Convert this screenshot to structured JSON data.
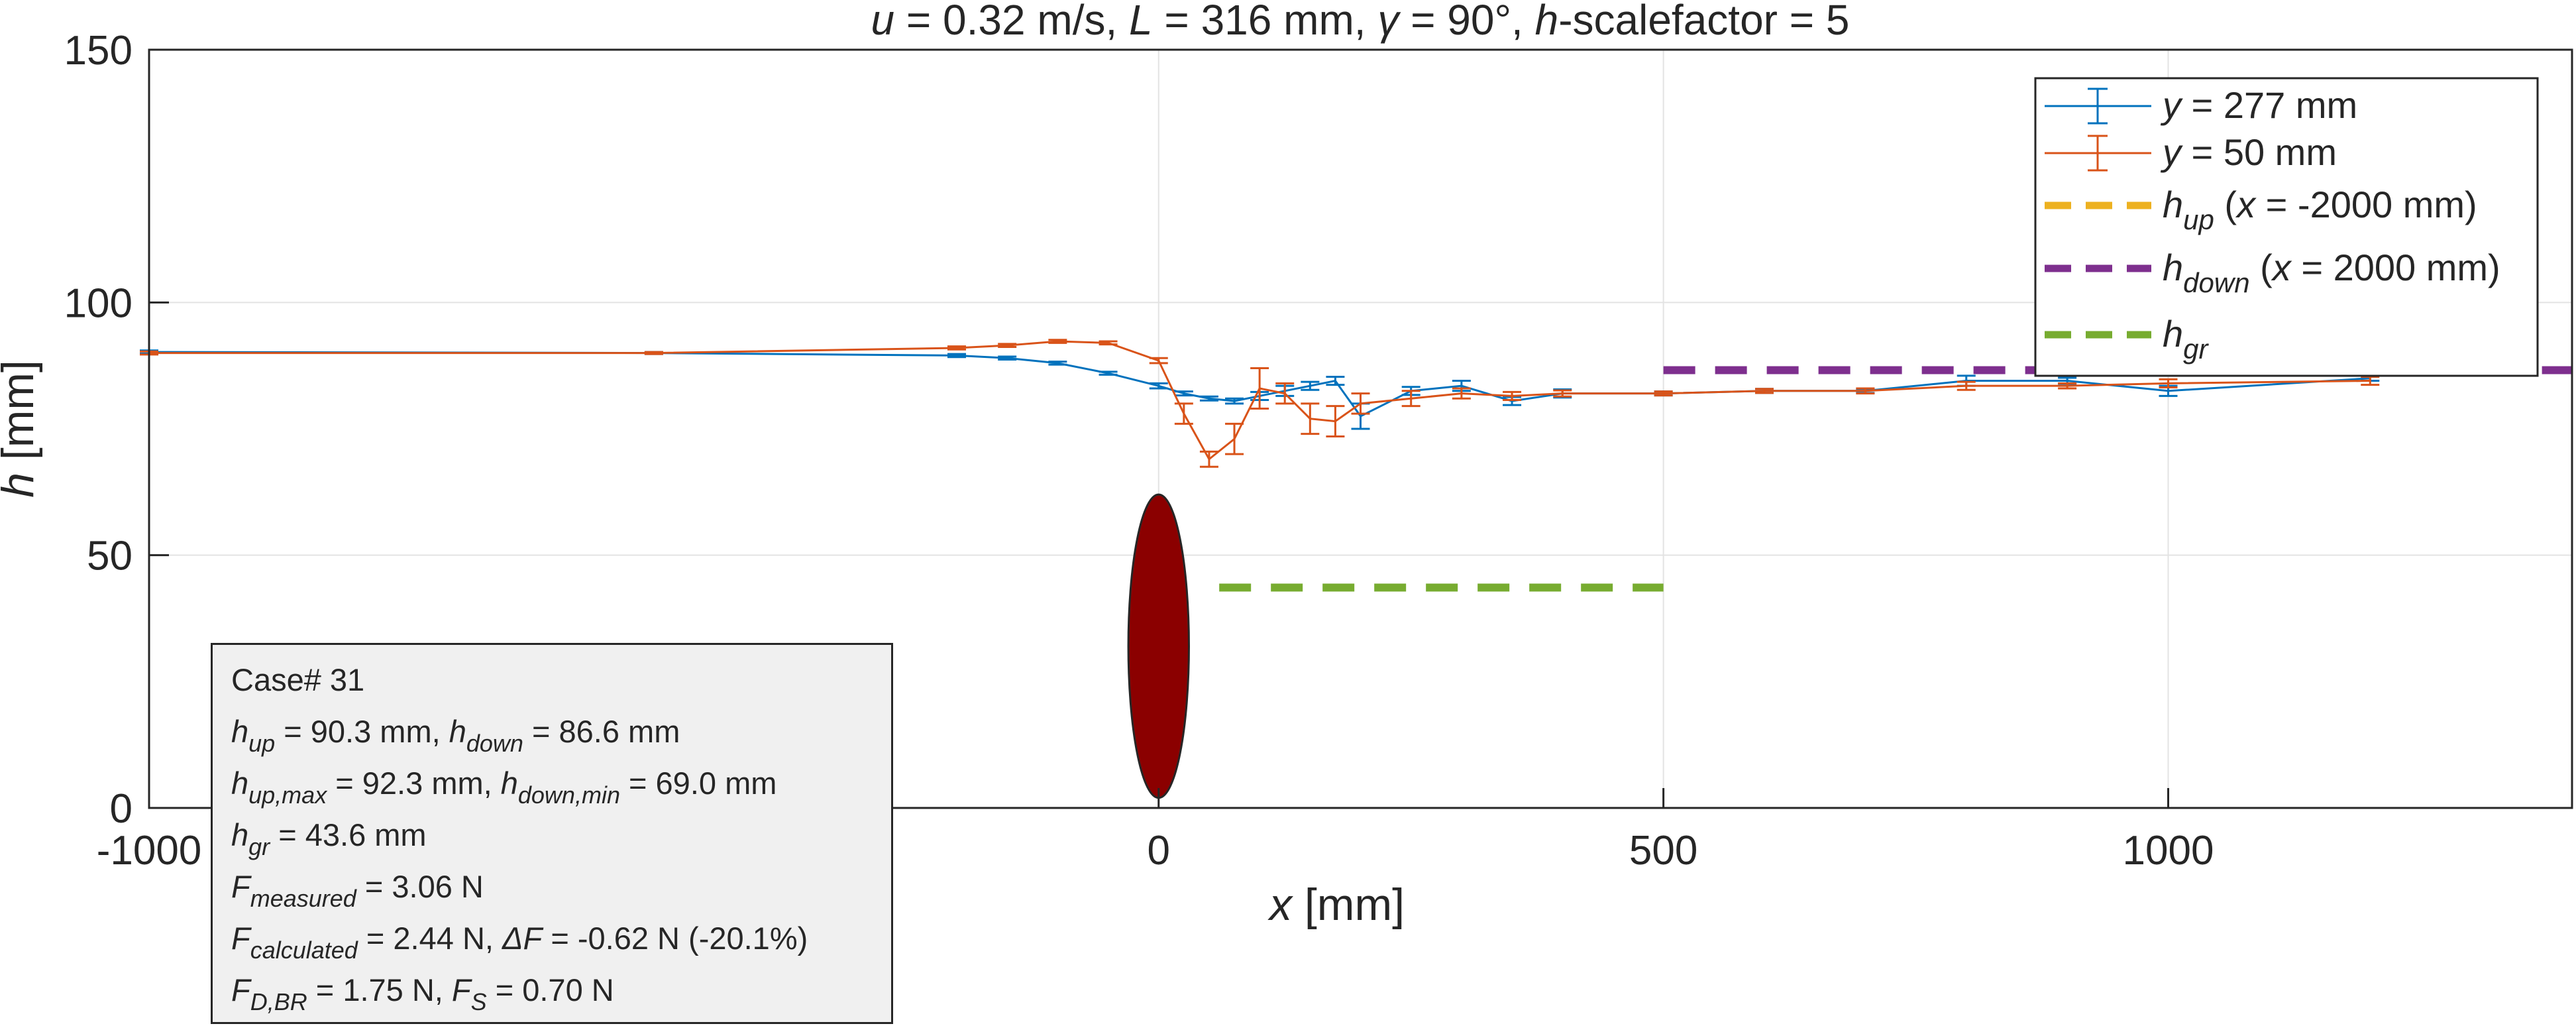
{
  "chart_data": {
    "type": "line",
    "title": {
      "u": "0.32",
      "L": "316",
      "gamma": "90",
      "scalefactor": "5"
    },
    "xlabel": "x [mm]",
    "ylabel": "h [mm]",
    "xlim": [
      -1000,
      1400
    ],
    "ylim": [
      0,
      150
    ],
    "xticks": [
      "-1000",
      "0",
      "500",
      "1000"
    ],
    "xtick_values": [
      -1000,
      0,
      500,
      1000
    ],
    "yticks": [
      "0",
      "50",
      "100",
      "150"
    ],
    "ytick_values": [
      0,
      50,
      100,
      150
    ],
    "grid": true,
    "legend_position": "top-right",
    "series": [
      {
        "name": "y = 277 mm",
        "color": "#0072BD",
        "x": [
          -1000,
          -500,
          -200,
          -150,
          -100,
          -50,
          0,
          25,
          50,
          75,
          100,
          125,
          150,
          175,
          200,
          250,
          300,
          350,
          400,
          500,
          600,
          700,
          800,
          900,
          1000,
          1200
        ],
        "y": [
          90.2,
          90.0,
          89.5,
          89.0,
          88.0,
          86.0,
          83.5,
          82.0,
          81.0,
          80.5,
          81.5,
          82.5,
          83.5,
          84.5,
          77.5,
          82.5,
          83.5,
          80.5,
          82.0,
          82.0,
          82.5,
          82.5,
          84.5,
          84.5,
          82.5,
          85.0
        ],
        "err": [
          0.3,
          0.2,
          0.3,
          0.3,
          0.3,
          0.3,
          0.5,
          0.4,
          0.4,
          0.5,
          0.8,
          1.0,
          0.8,
          0.8,
          2.5,
          0.8,
          1.0,
          0.8,
          0.8,
          0.4,
          0.4,
          0.4,
          1.0,
          0.6,
          1.0,
          0.5
        ]
      },
      {
        "name": "y = 50 mm",
        "color": "#D95319",
        "x": [
          -1000,
          -500,
          -200,
          -150,
          -100,
          -50,
          0,
          25,
          50,
          75,
          100,
          125,
          150,
          175,
          200,
          250,
          300,
          350,
          400,
          500,
          600,
          700,
          800,
          900,
          1000,
          1200
        ],
        "y": [
          90.0,
          90.0,
          91.0,
          91.5,
          92.3,
          92.0,
          88.5,
          78.0,
          69.0,
          73.0,
          83.0,
          82.0,
          77.0,
          76.5,
          80.0,
          81.0,
          82.0,
          81.5,
          82.0,
          82.0,
          82.5,
          82.5,
          83.5,
          83.5,
          84.0,
          84.5
        ],
        "err": [
          0.3,
          0.2,
          0.3,
          0.3,
          0.3,
          0.3,
          0.5,
          2.0,
          1.5,
          3.0,
          4.0,
          2.0,
          3.0,
          3.0,
          2.0,
          1.5,
          1.0,
          0.8,
          0.6,
          0.4,
          0.4,
          0.5,
          0.8,
          0.5,
          0.8,
          0.8
        ]
      }
    ],
    "reference_lines": [
      {
        "label": "h_up (x = -2000 mm)",
        "color": "#EDB120",
        "y": 90.3,
        "x": [
          -1000,
          -1000
        ]
      },
      {
        "label": "h_down (x = 2000 mm)",
        "color": "#7E2F8E",
        "y": 86.6,
        "x": [
          500,
          1400
        ]
      },
      {
        "label": "h_gr",
        "color": "#77AC30",
        "y": 43.6,
        "x": [
          60,
          500
        ]
      }
    ],
    "obstacle": {
      "color": "#8B0000",
      "x_center": 0,
      "x_halfwidth": 30,
      "y_min": 2,
      "y_max": 62
    },
    "legend": {
      "s1": {
        "var": "y",
        "rest": " = 277 mm"
      },
      "s2": {
        "var": "y",
        "rest": " = 50 mm"
      },
      "hup": {
        "var": "h",
        "sub": "up",
        "rest": " (",
        "var2": "x",
        "rest2": " = -2000 mm)"
      },
      "hdown": {
        "var": "h",
        "sub": "down",
        "rest": " (",
        "var2": "x",
        "rest2": " = 2000 mm)"
      },
      "hgr": {
        "var": "h",
        "sub": "gr"
      }
    }
  },
  "infobox": {
    "case": "Case# 31",
    "h_up": "90.3",
    "h_down": "86.6",
    "h_up_max": "92.3",
    "h_down_min": "69.0",
    "h_gr": "43.6",
    "F_measured": "3.06",
    "F_calculated": "2.44",
    "dF": "-0.62",
    "dF_pct": "(-20.1%)",
    "F_DBR": "1.75",
    "F_S": "0.70"
  }
}
